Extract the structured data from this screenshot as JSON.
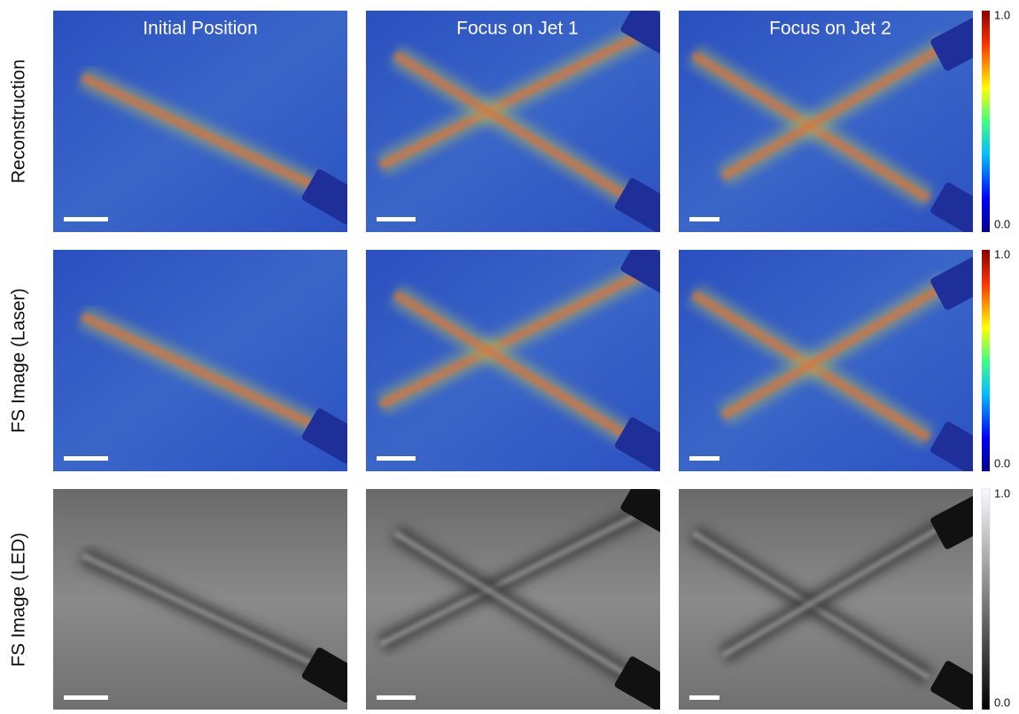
{
  "columns": [
    "Initial Position",
    "Focus on Jet 1",
    "Focus on Jet 2"
  ],
  "rows": [
    {
      "label": "Reconstruction",
      "colorbar": {
        "max": "1.0",
        "min": "0.0"
      }
    },
    {
      "label": "FS Image (Laser)",
      "colorbar": {
        "max": "1.0",
        "min": "0.0"
      }
    },
    {
      "label": "FS Image (LED)",
      "colorbar": {
        "max": "1.0",
        "min": "0.0"
      }
    }
  ]
}
